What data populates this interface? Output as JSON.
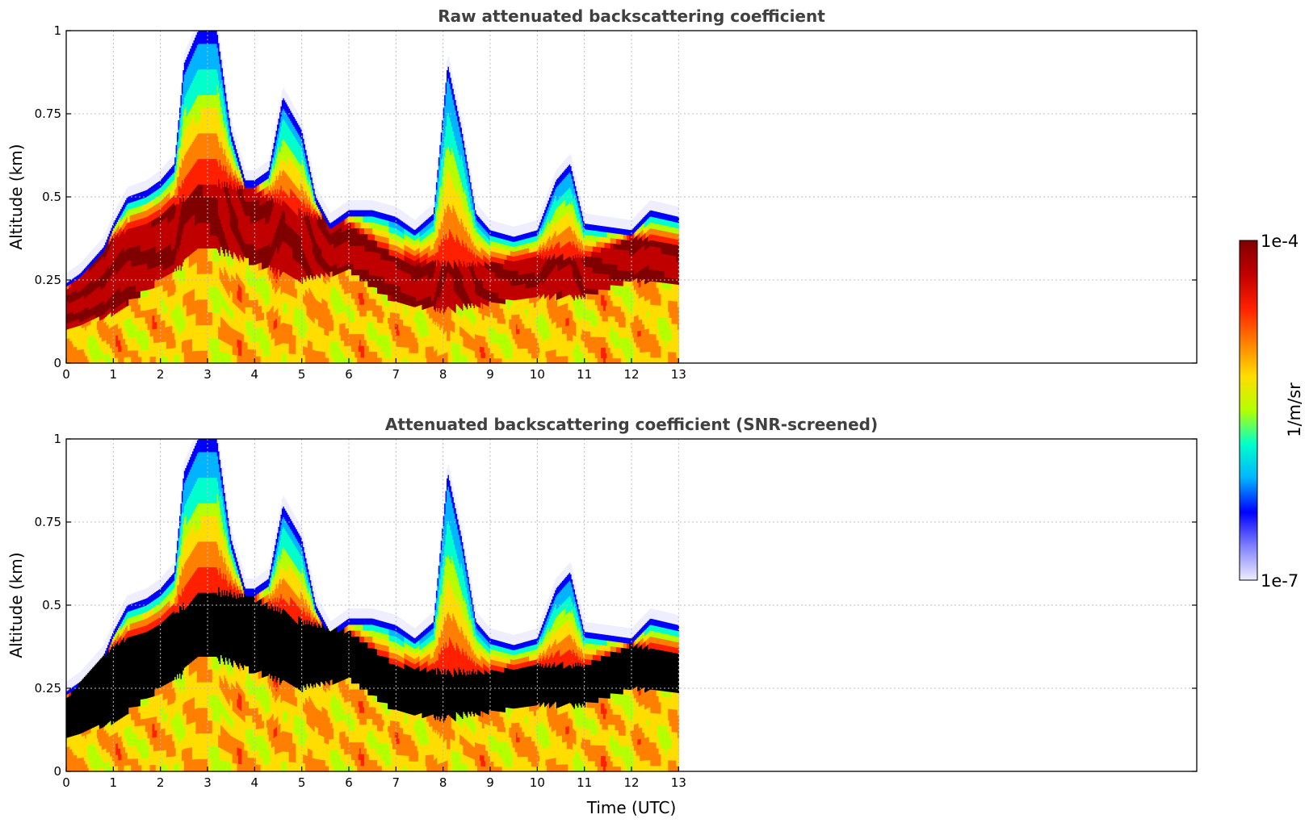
{
  "chart_data": [
    {
      "type": "heatmap",
      "title": "Raw attenuated backscattering coefficient",
      "xlabel": "",
      "ylabel": "Altitude (km)",
      "xlim": [
        0,
        24
      ],
      "ylim": [
        0,
        1
      ],
      "x_ticks": [
        "0",
        "1",
        "2",
        "3",
        "4",
        "5",
        "6",
        "7",
        "8",
        "9",
        "10",
        "11",
        "12",
        "13"
      ],
      "y_ticks": [
        "0",
        "0.25",
        "0.5",
        "0.75",
        "1"
      ],
      "grid": true,
      "data_coverage_x": [
        0,
        13
      ],
      "saturated_shown_as_black": false,
      "cloud_top_km": [
        [
          0.0,
          0.24
        ],
        [
          0.3,
          0.27
        ],
        [
          0.8,
          0.35
        ],
        [
          1.0,
          0.42
        ],
        [
          1.3,
          0.5
        ],
        [
          1.7,
          0.52
        ],
        [
          2.0,
          0.55
        ],
        [
          2.3,
          0.6
        ],
        [
          2.5,
          0.9
        ],
        [
          2.8,
          1.0
        ],
        [
          3.2,
          1.0
        ],
        [
          3.5,
          0.7
        ],
        [
          3.8,
          0.55
        ],
        [
          4.0,
          0.55
        ],
        [
          4.3,
          0.58
        ],
        [
          4.6,
          0.8
        ],
        [
          5.0,
          0.7
        ],
        [
          5.3,
          0.5
        ],
        [
          5.6,
          0.42
        ],
        [
          6.0,
          0.46
        ],
        [
          6.5,
          0.46
        ],
        [
          7.0,
          0.44
        ],
        [
          7.4,
          0.4
        ],
        [
          7.8,
          0.45
        ],
        [
          8.1,
          0.9
        ],
        [
          8.4,
          0.7
        ],
        [
          8.7,
          0.45
        ],
        [
          9.0,
          0.4
        ],
        [
          9.5,
          0.38
        ],
        [
          10.0,
          0.4
        ],
        [
          10.4,
          0.55
        ],
        [
          10.7,
          0.6
        ],
        [
          11.0,
          0.42
        ],
        [
          11.5,
          0.41
        ],
        [
          12.0,
          0.4
        ],
        [
          12.4,
          0.46
        ],
        [
          13.0,
          0.44
        ]
      ],
      "dense_layer_km": [
        [
          0.0,
          0.1,
          0.22
        ],
        [
          1.0,
          0.15,
          0.38
        ],
        [
          2.0,
          0.25,
          0.45
        ],
        [
          3.0,
          0.35,
          0.55
        ],
        [
          4.0,
          0.3,
          0.52
        ],
        [
          5.0,
          0.25,
          0.45
        ],
        [
          6.0,
          0.28,
          0.42
        ],
        [
          7.0,
          0.18,
          0.32
        ],
        [
          8.0,
          0.16,
          0.3
        ],
        [
          9.0,
          0.18,
          0.3
        ],
        [
          10.0,
          0.2,
          0.32
        ],
        [
          11.0,
          0.2,
          0.32
        ],
        [
          12.0,
          0.25,
          0.38
        ],
        [
          13.0,
          0.24,
          0.36
        ]
      ]
    },
    {
      "type": "heatmap",
      "title": "Attenuated backscattering coefficient (SNR-screened)",
      "xlabel": "Time (UTC)",
      "ylabel": "Altitude (km)",
      "xlim": [
        0,
        24
      ],
      "ylim": [
        0,
        1
      ],
      "x_ticks": [
        "0",
        "1",
        "2",
        "3",
        "4",
        "5",
        "6",
        "7",
        "8",
        "9",
        "10",
        "11",
        "12",
        "13"
      ],
      "y_ticks": [
        "0",
        "0.25",
        "0.5",
        "0.75",
        "1"
      ],
      "grid": true,
      "data_coverage_x": [
        0,
        13
      ],
      "saturated_shown_as_black": true,
      "cloud_top_km": [
        [
          0.0,
          0.24
        ],
        [
          0.3,
          0.27
        ],
        [
          0.8,
          0.35
        ],
        [
          1.0,
          0.42
        ],
        [
          1.3,
          0.5
        ],
        [
          1.7,
          0.52
        ],
        [
          2.0,
          0.55
        ],
        [
          2.3,
          0.6
        ],
        [
          2.5,
          0.9
        ],
        [
          2.8,
          1.0
        ],
        [
          3.2,
          1.0
        ],
        [
          3.5,
          0.7
        ],
        [
          3.8,
          0.55
        ],
        [
          4.0,
          0.55
        ],
        [
          4.3,
          0.58
        ],
        [
          4.6,
          0.8
        ],
        [
          5.0,
          0.7
        ],
        [
          5.3,
          0.5
        ],
        [
          5.6,
          0.42
        ],
        [
          6.0,
          0.46
        ],
        [
          6.5,
          0.46
        ],
        [
          7.0,
          0.44
        ],
        [
          7.4,
          0.4
        ],
        [
          7.8,
          0.45
        ],
        [
          8.1,
          0.9
        ],
        [
          8.4,
          0.7
        ],
        [
          8.7,
          0.45
        ],
        [
          9.0,
          0.4
        ],
        [
          9.5,
          0.38
        ],
        [
          10.0,
          0.4
        ],
        [
          10.4,
          0.55
        ],
        [
          10.7,
          0.6
        ],
        [
          11.0,
          0.42
        ],
        [
          11.5,
          0.41
        ],
        [
          12.0,
          0.4
        ],
        [
          12.4,
          0.46
        ],
        [
          13.0,
          0.44
        ]
      ],
      "dense_layer_km": [
        [
          0.0,
          0.1,
          0.22
        ],
        [
          1.0,
          0.15,
          0.38
        ],
        [
          2.0,
          0.25,
          0.45
        ],
        [
          3.0,
          0.35,
          0.55
        ],
        [
          4.0,
          0.3,
          0.52
        ],
        [
          5.0,
          0.25,
          0.45
        ],
        [
          6.0,
          0.28,
          0.42
        ],
        [
          7.0,
          0.18,
          0.32
        ],
        [
          8.0,
          0.16,
          0.3
        ],
        [
          9.0,
          0.18,
          0.3
        ],
        [
          10.0,
          0.2,
          0.32
        ],
        [
          11.0,
          0.2,
          0.32
        ],
        [
          12.0,
          0.25,
          0.38
        ],
        [
          13.0,
          0.24,
          0.36
        ]
      ]
    }
  ],
  "colorbar": {
    "max_label": "1e-4",
    "min_label": "1e-7",
    "units_label": "1/m/sr",
    "scale": "log",
    "colormap": "jet",
    "colors": [
      "#eeeeff",
      "#8080ff",
      "#0000ff",
      "#00b4ff",
      "#00ffcc",
      "#b4ff00",
      "#ffdd00",
      "#ff8000",
      "#ff2000",
      "#c00000",
      "#800000"
    ]
  }
}
